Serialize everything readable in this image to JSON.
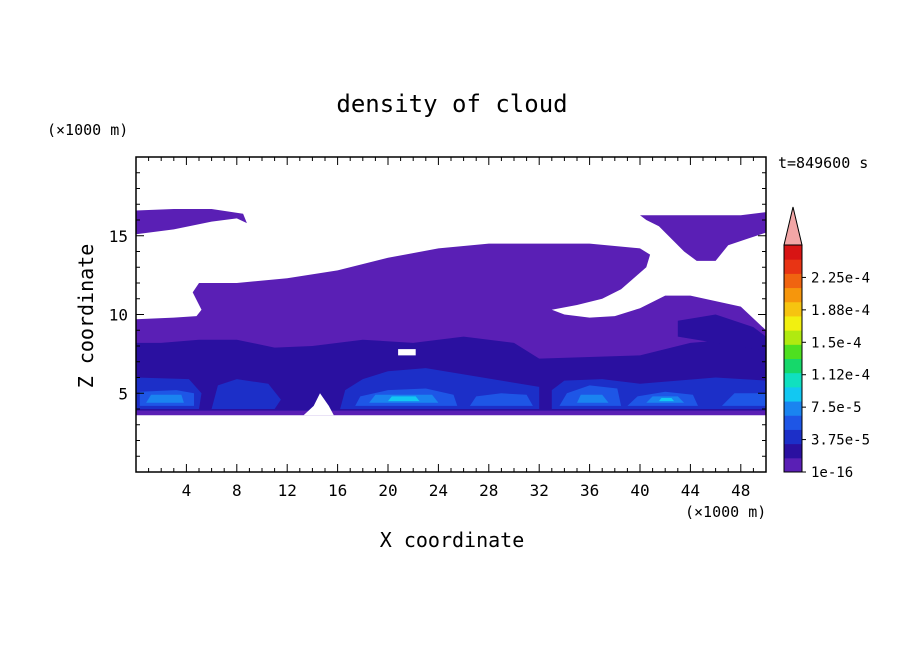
{
  "chart_data": {
    "type": "heatmap",
    "title": "density of cloud",
    "xlabel": "X coordinate",
    "ylabel": "Z coordinate",
    "x_unit": "(×1000 m)",
    "y_unit": "(×1000 m)",
    "time_label": "t=849600 s",
    "xlim": [
      0,
      50
    ],
    "ylim": [
      0,
      20
    ],
    "x_ticks": [
      4,
      8,
      12,
      16,
      20,
      24,
      28,
      32,
      36,
      40,
      44,
      48
    ],
    "y_ticks": [
      5,
      10,
      15
    ],
    "colorbar": {
      "levels": [
        "1e-16",
        "3.75e-5",
        "7.5e-5",
        "1.12e-4",
        "1.5e-4",
        "1.88e-4",
        "2.25e-4"
      ],
      "colors": [
        "#5a1fb5",
        "#2a10a0",
        "#1c2fc8",
        "#1e56e6",
        "#1a84f0",
        "#12c8f2",
        "#10e0c0",
        "#16d86a",
        "#4ee020",
        "#b0ea10",
        "#f2f010",
        "#f6c410",
        "#f6960c",
        "#f06410",
        "#e83414",
        "#d81414"
      ],
      "extend_color": "#f2a6a6"
    },
    "regions": [
      {
        "level": 0,
        "color": "#5a1fb5",
        "polygon": [
          [
            0,
            3.6
          ],
          [
            50,
            3.6
          ],
          [
            50,
            9.0
          ],
          [
            48,
            10.5
          ],
          [
            44,
            11.2
          ],
          [
            42,
            11.2
          ],
          [
            40,
            10.4
          ],
          [
            38,
            9.9
          ],
          [
            36,
            9.8
          ],
          [
            34,
            10.0
          ],
          [
            33,
            10.3
          ],
          [
            35,
            10.6
          ],
          [
            37,
            11.0
          ],
          [
            38.5,
            11.6
          ],
          [
            40.5,
            13.0
          ],
          [
            40.8,
            13.8
          ],
          [
            40,
            14.2
          ],
          [
            36,
            14.5
          ],
          [
            32,
            14.5
          ],
          [
            28,
            14.5
          ],
          [
            24,
            14.2
          ],
          [
            20,
            13.6
          ],
          [
            16,
            12.8
          ],
          [
            12,
            12.3
          ],
          [
            8,
            12.0
          ],
          [
            5,
            12.0
          ],
          [
            4.5,
            11.4
          ],
          [
            5.2,
            10.3
          ],
          [
            4.8,
            9.9
          ],
          [
            3,
            9.8
          ],
          [
            0,
            9.7
          ]
        ]
      },
      {
        "level": 0,
        "color": "#5a1fb5",
        "polygon": [
          [
            0,
            15.1
          ],
          [
            3,
            15.4
          ],
          [
            6,
            15.9
          ],
          [
            8,
            16.1
          ],
          [
            8.8,
            15.8
          ],
          [
            8.5,
            16.4
          ],
          [
            6,
            16.7
          ],
          [
            3,
            16.7
          ],
          [
            0,
            16.6
          ]
        ]
      },
      {
        "level": 0,
        "color": "#5a1fb5",
        "polygon": [
          [
            40,
            16.3
          ],
          [
            44,
            16.3
          ],
          [
            48,
            16.3
          ],
          [
            50,
            16.5
          ],
          [
            50,
            15.2
          ],
          [
            48.5,
            14.8
          ],
          [
            47,
            14.4
          ],
          [
            46,
            13.4
          ],
          [
            44.5,
            13.4
          ],
          [
            43.5,
            14.0
          ],
          [
            42.5,
            14.8
          ],
          [
            41.5,
            15.6
          ],
          [
            40.5,
            16.0
          ]
        ]
      },
      {
        "level": 1,
        "color": "#2a10a0",
        "polygon": [
          [
            0,
            3.9
          ],
          [
            50,
            3.9
          ],
          [
            50,
            7.7
          ],
          [
            47,
            8.4
          ],
          [
            44,
            8.2
          ],
          [
            40,
            7.4
          ],
          [
            36,
            7.3
          ],
          [
            32,
            7.2
          ],
          [
            30,
            8.2
          ],
          [
            26,
            8.6
          ],
          [
            22,
            8.2
          ],
          [
            18,
            8.4
          ],
          [
            14,
            8.0
          ],
          [
            11,
            7.9
          ],
          [
            8,
            8.4
          ],
          [
            5,
            8.4
          ],
          [
            2,
            8.2
          ],
          [
            0,
            8.2
          ]
        ]
      },
      {
        "level": 1,
        "color": "#2a10a0",
        "polygon": [
          [
            43,
            9.6
          ],
          [
            46,
            10.0
          ],
          [
            49,
            9.2
          ],
          [
            50,
            8.6
          ],
          [
            50,
            7.7
          ],
          [
            46,
            8.2
          ],
          [
            43,
            8.6
          ]
        ]
      },
      {
        "level": 2,
        "color": "#1c2fc8",
        "polygon": [
          [
            0,
            4.0
          ],
          [
            5,
            4.0
          ],
          [
            5.2,
            5.0
          ],
          [
            4.2,
            5.9
          ],
          [
            0,
            6.0
          ]
        ]
      },
      {
        "level": 2,
        "color": "#1c2fc8",
        "polygon": [
          [
            6,
            4.0
          ],
          [
            11,
            4.0
          ],
          [
            11.5,
            4.6
          ],
          [
            10.5,
            5.6
          ],
          [
            8,
            5.9
          ],
          [
            6.5,
            5.5
          ]
        ]
      },
      {
        "level": 2,
        "color": "#1c2fc8",
        "polygon": [
          [
            16.2,
            4.0
          ],
          [
            32,
            4.0
          ],
          [
            32,
            5.4
          ],
          [
            29,
            5.8
          ],
          [
            26,
            6.2
          ],
          [
            23,
            6.6
          ],
          [
            20,
            6.4
          ],
          [
            18,
            5.9
          ],
          [
            16.6,
            5.2
          ]
        ]
      },
      {
        "level": 2,
        "color": "#1c2fc8",
        "polygon": [
          [
            33,
            4.0
          ],
          [
            50,
            4.0
          ],
          [
            50,
            5.8
          ],
          [
            46,
            6.0
          ],
          [
            43,
            5.8
          ],
          [
            40,
            5.6
          ],
          [
            37,
            5.9
          ],
          [
            34,
            5.8
          ],
          [
            33,
            5.2
          ]
        ]
      },
      {
        "level": 3,
        "color": "#1e56e6",
        "polygon": [
          [
            0.3,
            4.2
          ],
          [
            4.6,
            4.2
          ],
          [
            4.6,
            5.0
          ],
          [
            3.2,
            5.2
          ],
          [
            0.3,
            5.1
          ]
        ]
      },
      {
        "level": 3,
        "color": "#1e56e6",
        "polygon": [
          [
            17.4,
            4.2
          ],
          [
            25.5,
            4.2
          ],
          [
            25.2,
            4.9
          ],
          [
            23,
            5.3
          ],
          [
            20,
            5.2
          ],
          [
            17.8,
            4.8
          ]
        ]
      },
      {
        "level": 3,
        "color": "#1e56e6",
        "polygon": [
          [
            26.5,
            4.2
          ],
          [
            31.5,
            4.2
          ],
          [
            31,
            4.9
          ],
          [
            29,
            5.0
          ],
          [
            27,
            4.8
          ]
        ]
      },
      {
        "level": 3,
        "color": "#1e56e6",
        "polygon": [
          [
            33.6,
            4.2
          ],
          [
            38.5,
            4.2
          ],
          [
            38.2,
            5.3
          ],
          [
            36,
            5.5
          ],
          [
            34.2,
            5.0
          ]
        ]
      },
      {
        "level": 3,
        "color": "#1e56e6",
        "polygon": [
          [
            39,
            4.2
          ],
          [
            44.6,
            4.2
          ],
          [
            44.2,
            4.9
          ],
          [
            42,
            5.1
          ],
          [
            39.8,
            4.8
          ]
        ]
      },
      {
        "level": 3,
        "color": "#1e56e6",
        "polygon": [
          [
            46.5,
            4.2
          ],
          [
            50,
            4.2
          ],
          [
            50,
            5.0
          ],
          [
            47.5,
            5.0
          ]
        ]
      },
      {
        "level": 4,
        "color": "#1a84f0",
        "polygon": [
          [
            0.8,
            4.4
          ],
          [
            3.8,
            4.4
          ],
          [
            3.6,
            4.9
          ],
          [
            1.2,
            4.9
          ]
        ]
      },
      {
        "level": 4,
        "color": "#1a84f0",
        "polygon": [
          [
            18.5,
            4.4
          ],
          [
            24,
            4.4
          ],
          [
            23.5,
            4.9
          ],
          [
            19,
            4.9
          ]
        ]
      },
      {
        "level": 4,
        "color": "#1a84f0",
        "polygon": [
          [
            35,
            4.4
          ],
          [
            37.5,
            4.4
          ],
          [
            37,
            4.9
          ],
          [
            35.3,
            4.9
          ]
        ]
      },
      {
        "level": 4,
        "color": "#1a84f0",
        "polygon": [
          [
            40.5,
            4.4
          ],
          [
            43.5,
            4.4
          ],
          [
            43,
            4.8
          ],
          [
            41,
            4.8
          ]
        ]
      },
      {
        "level": 5,
        "color": "#12c8f2",
        "polygon": [
          [
            20,
            4.5
          ],
          [
            22.5,
            4.5
          ],
          [
            22.2,
            4.8
          ],
          [
            20.3,
            4.8
          ]
        ]
      },
      {
        "level": 5,
        "color": "#12c8f2",
        "polygon": [
          [
            41.5,
            4.5
          ],
          [
            42.7,
            4.5
          ],
          [
            42.5,
            4.7
          ],
          [
            41.7,
            4.7
          ]
        ]
      }
    ],
    "holes": [
      {
        "polygon": [
          [
            13.3,
            3.6
          ],
          [
            15.7,
            3.6
          ],
          [
            15.3,
            4.2
          ],
          [
            14.6,
            5.0
          ],
          [
            14.1,
            4.2
          ]
        ]
      },
      {
        "polygon": [
          [
            20.8,
            7.4
          ],
          [
            22.2,
            7.4
          ],
          [
            22.2,
            7.8
          ],
          [
            20.8,
            7.8
          ]
        ]
      }
    ]
  }
}
